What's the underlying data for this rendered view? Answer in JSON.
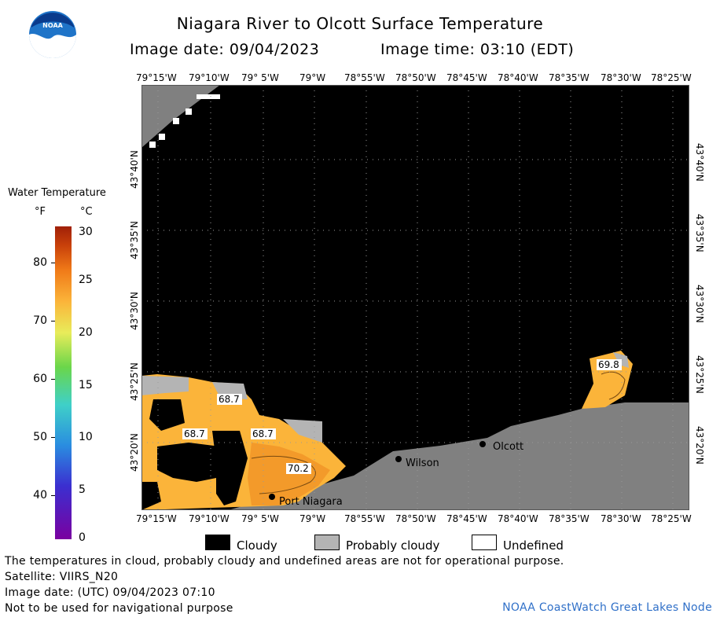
{
  "title": "Niagara River to Olcott Surface Temperature",
  "image_date": "Image date: 09/04/2023",
  "image_time": "Image time: 03:10 (EDT)",
  "logo_text": "NOAA",
  "lon_labels_top": [
    "79°15'W",
    "79°10'W",
    "79° 5'W",
    "79°W",
    "78°55'W",
    "78°50'W",
    "78°45'W",
    "78°40'W",
    "78°35'W",
    "78°30'W",
    "78°25'W"
  ],
  "lon_labels_bottom": [
    "79°15'W",
    "79°10'W",
    "79° 5'W",
    "79°W",
    "78°55'W",
    "78°50'W",
    "78°45'W",
    "78°40'W",
    "78°35'W",
    "78°30'W",
    "78°25'W"
  ],
  "lat_labels": [
    "43°40'N",
    "43°35'N",
    "43°30'N",
    "43°25'N",
    "43°20'N"
  ],
  "cities": [
    {
      "name": "Port Niagara"
    },
    {
      "name": "Wilson"
    },
    {
      "name": "Olcott"
    }
  ],
  "temp_labels": [
    "68.7",
    "68.7",
    "68.7",
    "70.2",
    "69.8"
  ],
  "legend": {
    "title": "Water Temperature",
    "unit_f": "°F",
    "unit_c": "°C",
    "f_ticks": [
      "80",
      "70",
      "60",
      "50",
      "40"
    ],
    "c_ticks": [
      "30",
      "25",
      "20",
      "15",
      "10",
      "5",
      "0"
    ],
    "cloudy": "Cloudy",
    "probably_cloudy": "Probably cloudy",
    "undefined": "Undefined"
  },
  "notes": [
    "The temperatures in cloud, probably cloudy and undefined areas are not for operational purpose.",
    "Satellite: VIIRS_N20",
    "Image date: (UTC) 09/04/2023  07:10",
    "Not to be used for navigational purpose"
  ],
  "credit": "NOAA CoastWatch Great Lakes Node",
  "colors": {
    "land": "#808080",
    "cloud": "#000000",
    "probably_cloudy": "#b4b4b4",
    "water_warm": "#fbb43a",
    "water_hot": "#f39a2a"
  }
}
